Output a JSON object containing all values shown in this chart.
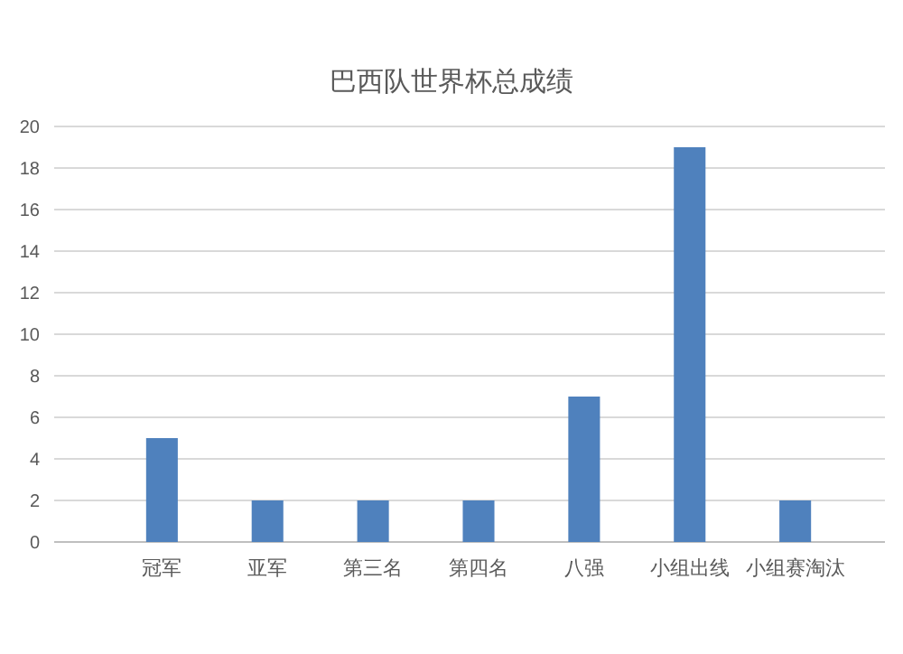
{
  "chart_data": {
    "type": "bar",
    "title": "巴西队世界杯总成绩",
    "categories": [
      "冠军",
      "亚军",
      "第三名",
      "第四名",
      "八强",
      "小组出线",
      "小组赛淘汰"
    ],
    "values": [
      5,
      2,
      2,
      2,
      7,
      19,
      2
    ],
    "color": "#4f81bd",
    "ylim": [
      0,
      20
    ],
    "yticks": [
      0,
      2,
      4,
      6,
      8,
      10,
      12,
      14,
      16,
      18,
      20
    ],
    "grid": "y"
  }
}
